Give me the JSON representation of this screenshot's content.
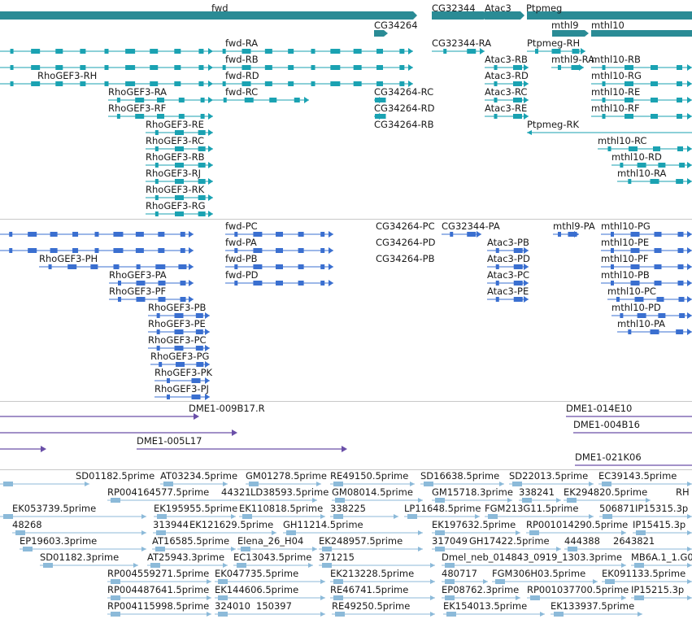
{
  "colors": {
    "gene": "#2a8b95",
    "transcript": "#1aa2b2",
    "protein": "#3a6fd0",
    "bac": "#6a4fa8",
    "est": "#8cbad9",
    "separator": "#c8c8c8"
  },
  "tracks": [
    {
      "name": "gene-track",
      "color": "gene",
      "labels": [
        "fwd",
        "CG32344",
        "Atac3",
        "Ptpmeg",
        "CG34264",
        "mthl9",
        "mthl10"
      ],
      "features": []
    },
    {
      "name": "transcript-track",
      "color": "transcript",
      "labels": [
        "fwd-RA",
        "CG32344-RA",
        "Ptpmeg-RH",
        "fwd-RB",
        "Atac3-RB",
        "mthl9-RA",
        "mthl10-RB",
        "RhoGEF3-RH",
        "fwd-RD",
        "Atac3-RD",
        "mthl10-RG",
        "RhoGEF3-RA",
        "fwd-RC",
        "CG34264-RC",
        "Atac3-RC",
        "mthl10-RE",
        "RhoGEF3-RF",
        "CG34264-RD",
        "Atac3-RE",
        "mthl10-RF",
        "RhoGEF3-RE",
        "CG34264-RB",
        "Ptpmeg-RK",
        "RhoGEF3-RC",
        "mthl10-RC",
        "RhoGEF3-RB",
        "mthl10-RD",
        "RhoGEF3-RJ",
        "mthl10-RA",
        "RhoGEF3-RK",
        "RhoGEF3-RG"
      ],
      "features": []
    },
    {
      "name": "protein-track",
      "color": "protein",
      "labels": [
        "fwd-PC",
        "CG34264-PC",
        "CG32344-PA",
        "mthl9-PA",
        "mthl10-PG",
        "fwd-PA",
        "CG34264-PD",
        "Atac3-PB",
        "mthl10-PE",
        "RhoGEF3-PH",
        "fwd-PB",
        "CG34264-PB",
        "Atac3-PD",
        "mthl10-PF",
        "RhoGEF3-PA",
        "fwd-PD",
        "Atac3-PC",
        "mthl10-PB",
        "RhoGEF3-PF",
        "Atac3-PE",
        "mthl10-PC",
        "RhoGEF3-PB",
        "mthl10-PD",
        "RhoGEF3-PE",
        "mthl10-PA",
        "RhoGEF3-PC",
        "RhoGEF3-PG",
        "RhoGEF3-PK",
        "RhoGEF3-PJ"
      ],
      "features": []
    },
    {
      "name": "bac-track",
      "color": "bac",
      "labels": [
        "DME1-009B17.R",
        "DME1-014E10",
        "DME1-004B16",
        "DME1-005L17",
        "DME1-021K06"
      ],
      "features": []
    },
    {
      "name": "est-track",
      "color": "est",
      "labels": [
        "SD01182.5prime",
        "AT03234.5prime",
        "GM01278.5prime",
        "RE49150.5prime",
        "SD16638.5prime",
        "SD22013.5prime",
        "EC39143.5prime",
        "RP004164577.5prime",
        "44321",
        "LD38593.5prime",
        "GM08014.5prime",
        "GM15718.3prime",
        "338241",
        "EK294820.5prime",
        "RH",
        "EK053739.5prime",
        "EK195955.5prime",
        "EK110818.5prime",
        "338225",
        "LP11648.5prime",
        "FGM213G11.5prime",
        "506871",
        "IP15315.3p",
        "48268",
        "313944",
        "EK121629.5prime",
        "GH11214.5prime",
        "EK197632.5prime",
        "RP001014290.5prime",
        "IP15415.3p",
        "EP19603.3prime",
        "AT16585.5prime",
        "Elena_26_H04",
        "EK248957.5prime",
        "317049",
        "GH17422.5prime",
        "444388",
        "2643821",
        "SD01182.3prime",
        "AT25943.3prime",
        "EC13043.5prime",
        "371215",
        "Dmel_neb_014843_0919_1303.3prime",
        "MB6A.1_1.G0",
        "RP004559271.5prime",
        "EK047735.5prime",
        "EK213228.5prime",
        "480717",
        "FGM306H03.5prime",
        "EK091133.5prime",
        "RP004487641.5prime",
        "EK144606.5prime",
        "RE46741.5prime",
        "EP08762.3prime",
        "RP001037700.5prime",
        "IP15215.3p",
        "RP004115998.5prime",
        "324010",
        "150397",
        "RE49250.5prime",
        "EK154013.5prime",
        "EK133937.5prime"
      ],
      "features": []
    }
  ]
}
